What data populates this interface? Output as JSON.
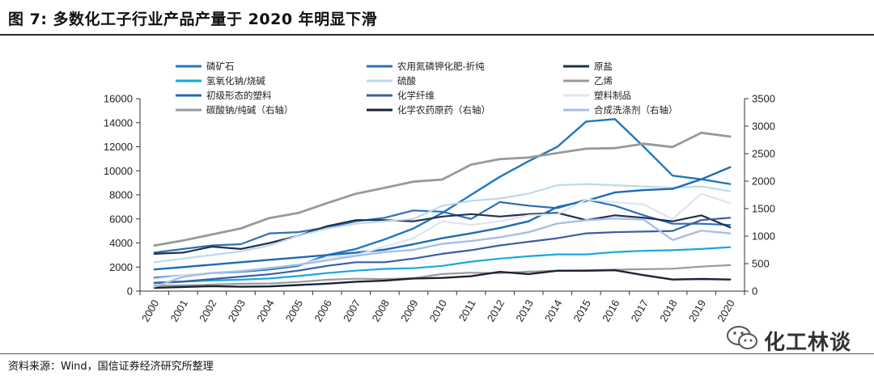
{
  "header": {
    "title": "图 7:  多数化工子行业产品产量于 2020 年明显下滑"
  },
  "footer": {
    "source": "资料来源：Wind，国信证券经济研究所整理"
  },
  "watermark": {
    "text": "化工林谈",
    "icon": "wechat-icon"
  },
  "chart_data": {
    "type": "line",
    "title": "多数化工子行业产品产量于 2020 年明显下滑",
    "categories": [
      "2000",
      "2001",
      "2002",
      "2003",
      "2004",
      "2005",
      "2006",
      "2007",
      "2008",
      "2009",
      "2010",
      "2011",
      "2012",
      "2013",
      "2014",
      "2015",
      "2016",
      "2017",
      "2018",
      "2019",
      "2020"
    ],
    "left_axis": {
      "min": 0,
      "max": 16000,
      "ticks": [
        "0",
        "2000",
        "4000",
        "6000",
        "8000",
        "10000",
        "12000",
        "14000",
        "16000"
      ]
    },
    "right_axis": {
      "min": 0,
      "max": 3500,
      "ticks": [
        "0",
        "500",
        "1000",
        "1500",
        "2000",
        "2500",
        "3000",
        "3500"
      ]
    },
    "series": [
      {
        "name": "磷矿石",
        "axis": "left",
        "color": "#1f78c1",
        "width": 2.4,
        "values": [
          1100,
          1300,
          1500,
          1600,
          1800,
          2100,
          3000,
          3500,
          4300,
          5200,
          6500,
          8000,
          9500,
          10800,
          12000,
          14100,
          14300,
          12000,
          9600,
          9300,
          8900
        ]
      },
      {
        "name": "农用氮磷钾化肥-折纯",
        "axis": "left",
        "color": "#2e6fb5",
        "width": 2.2,
        "values": [
          3200,
          3500,
          3800,
          3900,
          4800,
          4900,
          5300,
          5800,
          6100,
          6700,
          6600,
          6000,
          7400,
          7100,
          6900,
          7600,
          7100,
          6300,
          5600,
          5600,
          5500
        ]
      },
      {
        "name": "原盐",
        "axis": "left",
        "color": "#22314d",
        "width": 2.2,
        "values": [
          3100,
          3200,
          3700,
          3500,
          4000,
          4600,
          5400,
          5900,
          5900,
          5800,
          6200,
          6400,
          6200,
          6400,
          6500,
          5900,
          6300,
          6100,
          5800,
          6300,
          5300
        ]
      },
      {
        "name": "氢氧化钠/烧碱",
        "axis": "left",
        "color": "#17a8e0",
        "width": 2.2,
        "values": [
          650,
          780,
          880,
          950,
          1050,
          1250,
          1500,
          1700,
          1850,
          1900,
          2100,
          2450,
          2700,
          2900,
          3050,
          3050,
          3250,
          3350,
          3400,
          3500,
          3650
        ]
      },
      {
        "name": "硫酸",
        "axis": "left",
        "color": "#bcd9ee",
        "width": 2.2,
        "values": [
          2400,
          2700,
          3000,
          3300,
          3800,
          4600,
          5200,
          5600,
          5800,
          6000,
          7100,
          7500,
          7700,
          8100,
          8800,
          8900,
          8800,
          8700,
          8600,
          8700,
          8300
        ]
      },
      {
        "name": "乙烯",
        "axis": "left",
        "color": "#9a9a9a",
        "width": 2.2,
        "values": [
          450,
          480,
          540,
          610,
          630,
          760,
          940,
          1030,
          1000,
          1070,
          1420,
          1530,
          1490,
          1620,
          1700,
          1730,
          1780,
          1820,
          1860,
          2040,
          2160
        ]
      },
      {
        "name": "初级形态的塑料",
        "axis": "left",
        "color": "#1d6bb5",
        "width": 2.4,
        "values": [
          1800,
          2000,
          2200,
          2400,
          2600,
          2800,
          3000,
          3200,
          3450,
          3900,
          4400,
          4800,
          5250,
          5800,
          7000,
          7500,
          8200,
          8400,
          8500,
          9300,
          10300
        ]
      },
      {
        "name": "化学纤维",
        "axis": "left",
        "color": "#3a5ea5",
        "width": 2.2,
        "values": [
          700,
          800,
          1000,
          1200,
          1400,
          1700,
          2100,
          2400,
          2400,
          2700,
          3100,
          3400,
          3800,
          4100,
          4400,
          4800,
          4900,
          4950,
          5000,
          5900,
          6100
        ]
      },
      {
        "name": "塑料制品",
        "axis": "left",
        "color": "#dbe5f1",
        "width": 2.2,
        "values": [
          1000,
          1300,
          1500,
          1700,
          1900,
          2200,
          2800,
          3000,
          3700,
          4400,
          5800,
          5500,
          5800,
          6300,
          6400,
          7600,
          7400,
          7200,
          6000,
          8100,
          7300
        ]
      },
      {
        "name": "碳酸钠/纯碱（右轴）",
        "axis": "right",
        "color": "#999999",
        "width": 2.8,
        "values": [
          830,
          920,
          1030,
          1140,
          1330,
          1420,
          1600,
          1770,
          1880,
          1990,
          2030,
          2300,
          2400,
          2430,
          2510,
          2590,
          2600,
          2680,
          2620,
          2880,
          2810
        ]
      },
      {
        "name": "化学农药原药（右轴）",
        "axis": "right",
        "color": "#1b2433",
        "width": 2.4,
        "values": [
          60,
          75,
          90,
          80,
          85,
          110,
          135,
          170,
          190,
          230,
          240,
          270,
          350,
          310,
          370,
          370,
          380,
          290,
          210,
          220,
          210
        ]
      },
      {
        "name": "合成洗涤剂（右轴）",
        "axis": "right",
        "color": "#a6bfe4",
        "width": 2.4,
        "values": [
          80,
          260,
          330,
          360,
          420,
          480,
          560,
          640,
          710,
          750,
          860,
          910,
          980,
          1070,
          1230,
          1290,
          1320,
          1300,
          930,
          1100,
          1050
        ]
      }
    ]
  }
}
